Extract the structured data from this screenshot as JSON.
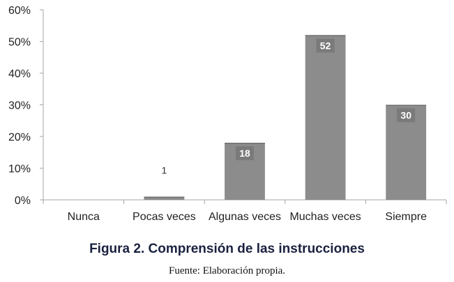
{
  "chart_data": {
    "type": "bar",
    "categories": [
      "Nunca",
      "Pocas veces",
      "Algunas veces",
      "Muchas veces",
      "Siempre"
    ],
    "values": [
      0,
      1,
      18,
      52,
      30
    ],
    "data_labels": [
      "",
      "1",
      "18",
      "52",
      "30"
    ],
    "ylim": [
      0,
      60
    ],
    "yticks": [
      0,
      10,
      20,
      30,
      40,
      50,
      60
    ],
    "ytick_labels": [
      "0%",
      "10%",
      "20%",
      "30%",
      "40%",
      "50%",
      "60%"
    ],
    "grid": false,
    "legend": "none",
    "bar_color": "#8c8c8c",
    "label_box_color": "#7a7a7a"
  },
  "caption": "Figura 2. Comprensión de las instrucciones",
  "source": "Fuente: Elaboración propia."
}
